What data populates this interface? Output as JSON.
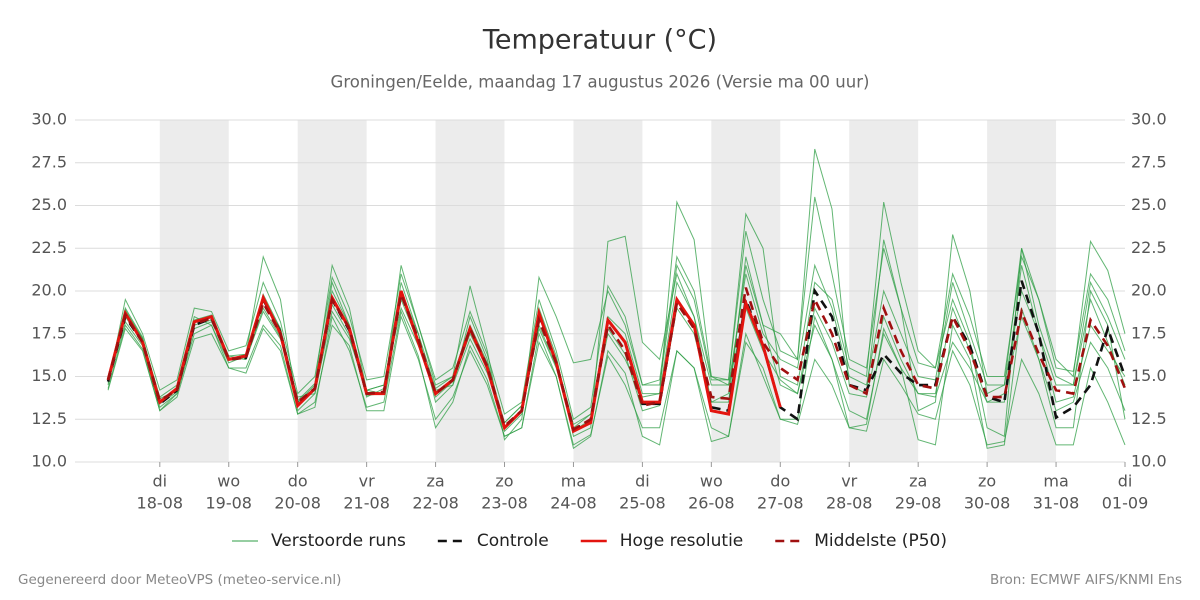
{
  "chart_data": {
    "type": "line",
    "title": "Temperatuur (°C)",
    "subtitle": "Groningen/Eelde, maandag 17 augustus 2026 (Versie ma 00 uur)",
    "footer_left": "Gegenereerd door MeteoVPS (meteo-service.nl)",
    "footer_right": "Bron: ECMWF AIFS/KNMI Ens",
    "grid": true,
    "x": [
      0.25,
      0.5,
      0.75,
      1,
      1.25,
      1.5,
      1.75,
      2,
      2.25,
      2.5,
      2.75,
      3,
      3.25,
      3.5,
      3.75,
      4,
      4.25,
      4.5,
      4.75,
      5,
      5.25,
      5.5,
      5.75,
      6,
      6.25,
      6.5,
      6.75,
      7,
      7.25,
      7.5,
      7.75,
      8,
      8.25,
      8.5,
      8.75,
      9,
      9.25,
      9.5,
      9.75,
      10,
      10.25,
      10.5,
      10.75,
      11,
      11.25,
      11.5,
      11.75,
      12,
      12.25,
      12.5,
      12.75,
      13,
      13.25,
      13.5,
      13.75,
      14,
      14.25,
      14.5,
      14.75,
      15
    ],
    "xlim": [
      -0.23,
      15
    ],
    "xticks": [
      {
        "value": 1,
        "label": "di",
        "date": "18-08"
      },
      {
        "value": 2,
        "label": "wo",
        "date": "19-08"
      },
      {
        "value": 3,
        "label": "do",
        "date": "20-08"
      },
      {
        "value": 4,
        "label": "vr",
        "date": "21-08"
      },
      {
        "value": 5,
        "label": "za",
        "date": "22-08"
      },
      {
        "value": 6,
        "label": "zo",
        "date": "23-08"
      },
      {
        "value": 7,
        "label": "ma",
        "date": "24-08"
      },
      {
        "value": 8,
        "label": "di",
        "date": "25-08"
      },
      {
        "value": 9,
        "label": "wo",
        "date": "26-08"
      },
      {
        "value": 10,
        "label": "do",
        "date": "27-08"
      },
      {
        "value": 11,
        "label": "vr",
        "date": "28-08"
      },
      {
        "value": 12,
        "label": "za",
        "date": "29-08"
      },
      {
        "value": 13,
        "label": "zo",
        "date": "30-08"
      },
      {
        "value": 14,
        "label": "ma",
        "date": "31-08"
      },
      {
        "value": 15,
        "label": "di",
        "date": "01-09"
      }
    ],
    "ylim": [
      10,
      30
    ],
    "yticks": [
      {
        "value": 10,
        "label": "10.0"
      },
      {
        "value": 12.5,
        "label": "12.5"
      },
      {
        "value": 15,
        "label": "15.0"
      },
      {
        "value": 17.5,
        "label": "17.5"
      },
      {
        "value": 20,
        "label": "20.0"
      },
      {
        "value": 22.5,
        "label": "22.5"
      },
      {
        "value": 25,
        "label": "25.0"
      },
      {
        "value": 27.5,
        "label": "27.5"
      },
      {
        "value": 30,
        "label": "30.0"
      }
    ],
    "ensemble": {
      "name": "Verstoorde runs",
      "color": "#2e9e44",
      "members": [
        [
          14.5,
          19.5,
          17.5,
          14.2,
          14.8,
          19.0,
          18.8,
          16.5,
          16.8,
          20.5,
          18.2,
          14.0,
          15.0,
          20.8,
          18.5,
          14.8,
          15.0,
          21.0,
          18.0,
          14.8,
          15.5,
          18.8,
          16.3,
          12.8,
          13.5,
          19.5,
          16.5,
          12.5,
          13.2,
          20.3,
          18.5,
          14.5,
          14.8,
          22.0,
          20.0,
          15.0,
          14.8,
          23.5,
          19.5,
          16.5,
          16.0,
          25.5,
          21.0,
          16.0,
          15.5,
          22.5,
          19.0,
          15.8,
          15.5,
          21.0,
          18.5,
          15.0,
          15.0,
          22.0,
          19.5,
          15.5,
          15.3,
          21.0,
          19.5,
          16.5
        ],
        [
          14.2,
          17.8,
          16.5,
          13.0,
          13.8,
          17.2,
          17.5,
          15.5,
          15.2,
          17.8,
          16.5,
          12.8,
          13.5,
          18.0,
          16.8,
          13.0,
          13.0,
          18.5,
          16.0,
          12.5,
          13.8,
          16.5,
          14.5,
          11.5,
          12.0,
          17.0,
          15.0,
          11.0,
          11.6,
          16.2,
          14.5,
          12.0,
          12.0,
          16.5,
          15.5,
          12.0,
          11.5,
          17.0,
          15.5,
          12.5,
          12.2,
          16.0,
          14.5,
          12.0,
          11.8,
          16.0,
          14.5,
          12.8,
          12.5,
          16.5,
          14.5,
          11.0,
          11.2,
          16.0,
          14.0,
          11.0,
          11.0,
          15.5,
          13.5,
          11.0
        ],
        [
          15.0,
          18.8,
          17.2,
          13.8,
          14.5,
          18.5,
          18.0,
          15.8,
          16.2,
          19.8,
          17.8,
          13.5,
          14.5,
          20.0,
          18.0,
          13.8,
          14.3,
          20.5,
          17.5,
          13.5,
          14.5,
          18.5,
          16.0,
          11.8,
          12.8,
          19.0,
          16.2,
          11.5,
          12.0,
          22.9,
          23.2,
          17.0,
          16.0,
          21.0,
          18.5,
          13.5,
          14.0,
          21.5,
          18.0,
          17.5,
          16.0,
          28.3,
          24.8,
          14.5,
          14.0,
          23.0,
          19.0,
          13.0,
          13.5,
          23.3,
          20.0,
          14.0,
          14.5,
          22.5,
          18.0,
          15.0,
          14.5,
          20.5,
          18.5,
          16.0
        ],
        [
          14.6,
          18.2,
          16.8,
          13.2,
          14.0,
          17.8,
          18.2,
          16.2,
          16.0,
          18.8,
          17.2,
          13.8,
          14.0,
          18.8,
          17.2,
          14.2,
          14.5,
          19.0,
          16.8,
          14.2,
          14.5,
          17.2,
          15.2,
          12.3,
          13.3,
          17.8,
          15.5,
          12.0,
          12.8,
          17.5,
          16.0,
          13.8,
          14.0,
          25.2,
          23.0,
          15.0,
          14.5,
          19.0,
          16.5,
          14.8,
          14.0,
          18.0,
          16.0,
          13.0,
          12.5,
          17.5,
          15.5,
          14.0,
          13.8,
          17.0,
          15.5,
          13.5,
          14.0,
          18.5,
          16.0,
          13.0,
          13.5,
          17.0,
          15.5,
          13.0
        ],
        [
          14.9,
          19.0,
          17.3,
          13.5,
          14.3,
          18.3,
          18.6,
          16.0,
          16.3,
          22.0,
          19.5,
          13.0,
          14.0,
          20.5,
          18.0,
          14.2,
          14.0,
          21.5,
          18.0,
          14.5,
          15.0,
          20.3,
          16.5,
          11.3,
          12.5,
          20.8,
          18.5,
          15.8,
          16.0,
          20.0,
          18.0,
          14.5,
          14.5,
          21.5,
          19.5,
          14.8,
          14.8,
          24.5,
          22.5,
          15.0,
          14.5,
          20.5,
          19.5,
          15.5,
          15.0,
          25.2,
          20.5,
          16.5,
          15.5,
          19.5,
          17.0,
          12.0,
          11.5,
          22.5,
          19.5,
          16.0,
          15.0,
          22.9,
          21.2,
          17.5
        ],
        [
          14.3,
          18.0,
          16.6,
          13.0,
          14.0,
          17.5,
          18.0,
          15.5,
          15.5,
          18.0,
          16.8,
          12.8,
          13.2,
          18.5,
          16.5,
          13.2,
          13.5,
          18.8,
          16.2,
          12.0,
          13.5,
          16.8,
          14.8,
          11.5,
          12.0,
          17.5,
          15.0,
          10.8,
          11.5,
          16.5,
          15.2,
          11.5,
          11.0,
          16.5,
          15.5,
          11.2,
          11.5,
          17.5,
          15.0,
          12.5,
          12.5,
          18.5,
          16.0,
          12.0,
          12.2,
          17.8,
          15.5,
          11.3,
          11.0,
          18.0,
          16.0,
          10.8,
          11.0,
          19.0,
          16.0,
          12.0,
          12.0,
          20.0,
          18.0,
          12.5
        ],
        [
          14.7,
          18.5,
          17.0,
          13.4,
          14.1,
          18.0,
          18.3,
          16.1,
          16.0,
          19.0,
          17.3,
          13.5,
          14.2,
          19.2,
          17.4,
          13.9,
          14.0,
          19.5,
          17.0,
          13.8,
          14.7,
          17.5,
          15.5,
          12.0,
          13.0,
          18.0,
          15.6,
          11.8,
          12.5,
          17.8,
          16.3,
          13.0,
          13.3,
          19.0,
          17.5,
          13.5,
          13.5,
          22.0,
          18.0,
          14.5,
          14.0,
          19.0,
          17.0,
          14.0,
          13.8,
          18.5,
          16.0,
          14.0,
          14.0,
          19.0,
          16.5,
          13.5,
          13.5,
          21.5,
          17.5,
          13.5,
          13.8,
          18.0,
          16.5,
          15.0
        ],
        [
          14.8,
          18.9,
          17.2,
          13.7,
          14.2,
          18.2,
          18.5,
          16.2,
          16.3,
          19.5,
          17.8,
          13.6,
          14.6,
          21.5,
          19.0,
          14.2,
          14.5,
          20.0,
          17.5,
          14.3,
          15.0,
          18.0,
          15.8,
          12.3,
          13.3,
          18.5,
          16.0,
          12.2,
          12.8,
          18.5,
          17.5,
          14.0,
          14.0,
          20.5,
          18.5,
          14.5,
          14.5,
          21.0,
          17.5,
          16.0,
          15.5,
          21.5,
          19.0,
          15.0,
          14.5,
          20.0,
          17.5,
          15.0,
          14.8,
          20.5,
          17.5,
          14.5,
          14.5,
          20.0,
          17.5,
          14.5,
          14.5,
          19.5,
          17.0,
          14.5
        ]
      ]
    },
    "series": [
      {
        "name": "Controle",
        "color": "#111111",
        "dash": true,
        "values": [
          14.7,
          18.5,
          17.0,
          13.4,
          14.2,
          18.0,
          18.4,
          16.0,
          16.1,
          19.5,
          17.6,
          13.4,
          14.3,
          19.5,
          17.7,
          14.0,
          14.0,
          20.0,
          17.0,
          14.0,
          14.8,
          17.8,
          15.5,
          12.0,
          13.0,
          18.5,
          15.8,
          11.9,
          12.4,
          18.3,
          17.0,
          13.4,
          13.4,
          19.4,
          18.0,
          13.2,
          13.0,
          19.5,
          16.8,
          13.2,
          12.5,
          20.0,
          18.5,
          14.5,
          14.2,
          16.3,
          15.2,
          14.5,
          14.5,
          18.5,
          16.8,
          13.8,
          13.5,
          20.6,
          17.5,
          12.6,
          13.2,
          14.5,
          17.8,
          15.0
        ]
      },
      {
        "name": "Hoge resolutie",
        "color": "#e3140f",
        "dash": false,
        "values": [
          14.8,
          18.7,
          17.0,
          13.5,
          14.3,
          18.2,
          18.5,
          16.0,
          16.2,
          19.6,
          17.5,
          13.3,
          14.3,
          19.6,
          17.8,
          14.0,
          14.0,
          20.0,
          17.0,
          14.0,
          14.8,
          17.8,
          15.5,
          12.0,
          13.0,
          18.7,
          15.8,
          11.8,
          12.3,
          18.3,
          17.0,
          13.5,
          13.5,
          19.5,
          18.0,
          13.0,
          12.8,
          19.3,
          16.8,
          13.2,
          null,
          null,
          null,
          null,
          null,
          null,
          null,
          null,
          null,
          null,
          null,
          null,
          null,
          null,
          null,
          null,
          null,
          null,
          null,
          null
        ]
      },
      {
        "name": "Middelste (P50)",
        "color": "#a01010",
        "dash": true,
        "values": [
          14.8,
          18.6,
          17.0,
          13.6,
          14.2,
          18.1,
          18.4,
          16.0,
          16.1,
          19.3,
          17.5,
          13.5,
          14.3,
          19.5,
          17.8,
          14.0,
          14.1,
          19.8,
          17.2,
          14.0,
          14.8,
          17.8,
          15.6,
          12.1,
          13.0,
          18.3,
          15.8,
          11.9,
          12.5,
          18.0,
          16.5,
          13.3,
          13.5,
          19.3,
          17.8,
          13.8,
          13.7,
          20.2,
          17.0,
          15.5,
          14.8,
          19.5,
          17.5,
          14.5,
          14.0,
          19.0,
          16.5,
          14.5,
          14.3,
          18.5,
          16.5,
          13.8,
          13.8,
          18.8,
          16.3,
          14.2,
          14.0,
          18.3,
          16.8,
          14.3
        ]
      }
    ]
  }
}
